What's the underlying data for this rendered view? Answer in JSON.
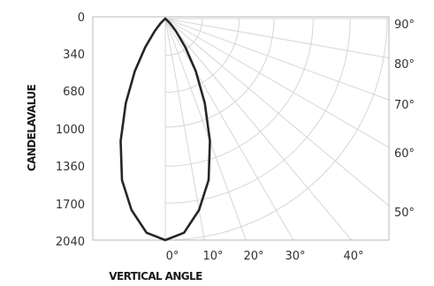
{
  "chart_data": {
    "type": "polar-candela",
    "ylabel": "CANDELAVALUE",
    "xlabel": "VERTICAL ANGLE",
    "radial_ticks": [
      "0",
      "340",
      "680",
      "1000",
      "1360",
      "1700",
      "2040"
    ],
    "radial_range": [
      0,
      2040
    ],
    "bottom_angle_ticks": [
      "0°",
      "10°",
      "20°",
      "30°",
      "40°"
    ],
    "right_angle_ticks": [
      "90°",
      "80°",
      "70°",
      "60°",
      "50°"
    ],
    "series": [
      {
        "angles": [
          0,
          5,
          10,
          15,
          20,
          25,
          30,
          35,
          40,
          45,
          50
        ],
        "values": [
          2040,
          1980,
          1790,
          1540,
          1200,
          860,
          560,
          320,
          150,
          60,
          0
        ]
      }
    ],
    "colors": {
      "curve": "#262626",
      "grid": "#d6d6d6"
    }
  }
}
